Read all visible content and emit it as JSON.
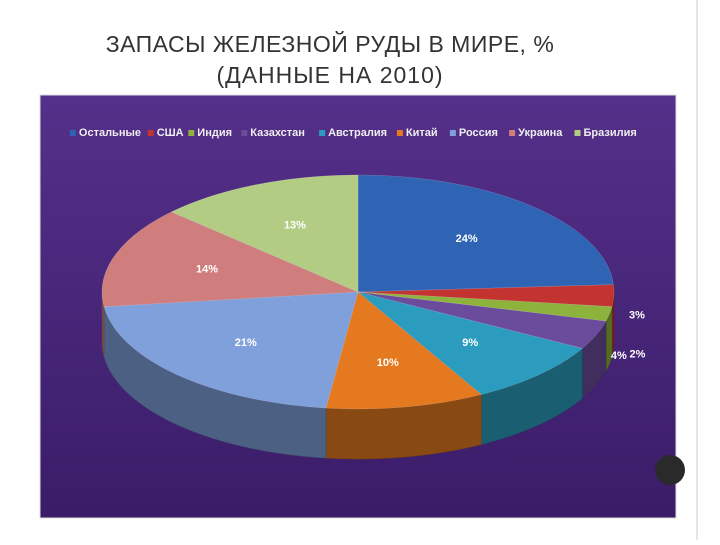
{
  "chart_data": {
    "type": "pie3d",
    "title": "ЗАПАСЫ ЖЕЛЕЗНОЙ РУДЫ В МИРЕ, %",
    "subtitle": "(ДАННЫЕ НА 2010)",
    "categories": [
      "Остальные",
      "США",
      "Индия",
      "Казахстан",
      "Австралия",
      "Китай",
      "Россия",
      "Украина",
      "Бразилия"
    ],
    "values": [
      24,
      3,
      2,
      4,
      9,
      10,
      21,
      14,
      13
    ],
    "value_labels": [
      "24%",
      "3%",
      "2%",
      "4%",
      "9%",
      "10%",
      "21%",
      "14%",
      "13%"
    ],
    "colors": [
      "#2f63b4",
      "#c3332f",
      "#8db33c",
      "#6b4c9c",
      "#2b9cbd",
      "#e5791f",
      "#7fa0da",
      "#cf7e7d",
      "#b3cc84"
    ],
    "legend": "top"
  }
}
